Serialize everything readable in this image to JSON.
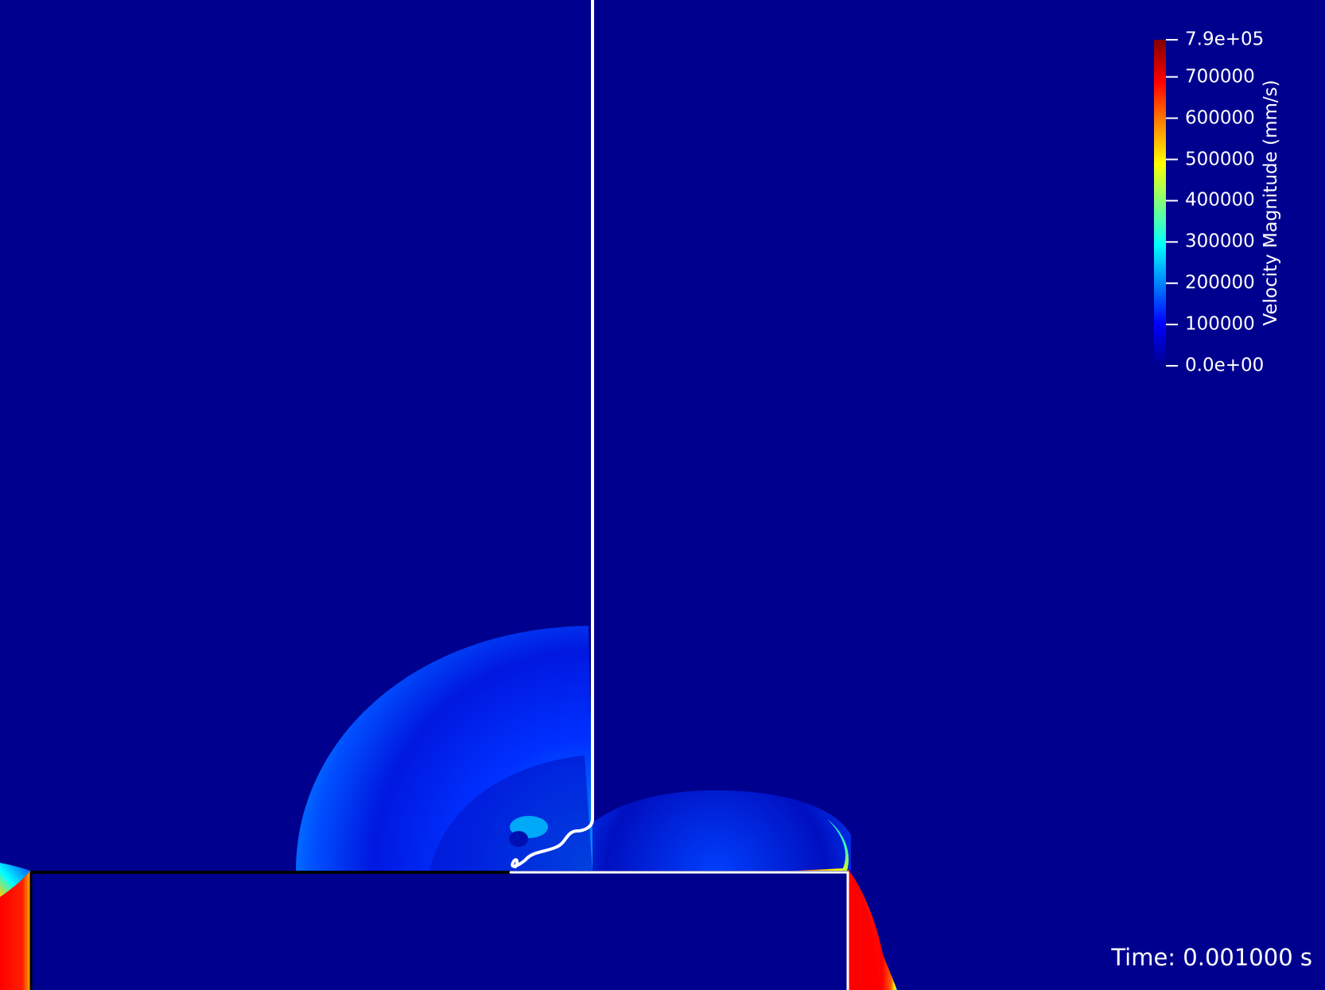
{
  "colorbar": {
    "title": "Velocity Magnitude (mm/s)",
    "ticks": [
      "7.9e+05",
      "700000",
      "600000",
      "500000",
      "400000",
      "300000",
      "200000",
      "100000",
      "0.0e+00"
    ],
    "tick_values": [
      790000,
      700000,
      600000,
      500000,
      400000,
      300000,
      200000,
      100000,
      0
    ],
    "range": [
      0,
      790000
    ],
    "colormap": [
      "#00008f",
      "#0000ff",
      "#00ffff",
      "#7fff7f",
      "#ffff00",
      "#ff7f00",
      "#ff0000",
      "#800000"
    ]
  },
  "time": {
    "label": "Time: 0.001000 s"
  },
  "colors": {
    "background": "#00008f",
    "contour": "#ffffff",
    "substrate_edge": "#000000",
    "jet_max": "#ff0000"
  }
}
